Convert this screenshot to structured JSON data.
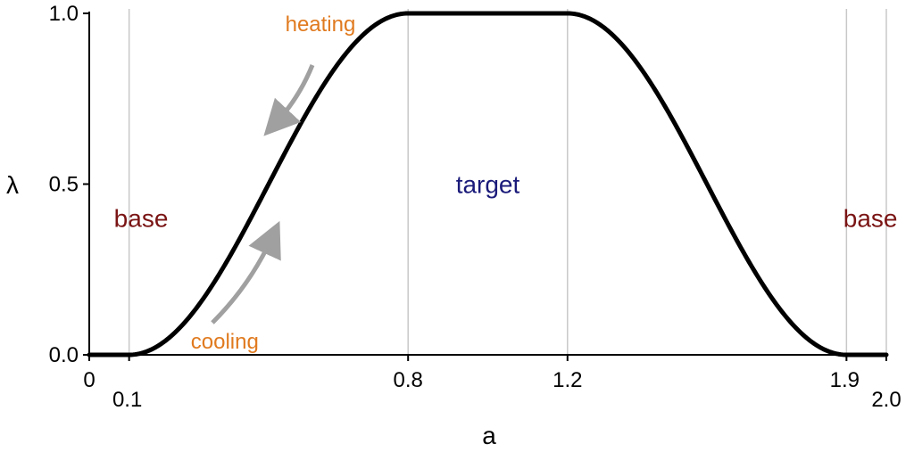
{
  "chart_data": {
    "type": "line",
    "title": "",
    "xlabel": "a",
    "ylabel": "λ",
    "xlim": [
      0,
      2.0
    ],
    "ylim": [
      0,
      1.0
    ],
    "grid": "vertical lines at 0.1, 0.8, 1.2, 1.9, 2.0",
    "x_ticks": [
      {
        "value": 0,
        "label": "0"
      },
      {
        "value": 0.1,
        "label": "0.1"
      },
      {
        "value": 0.8,
        "label": "0.8"
      },
      {
        "value": 1.2,
        "label": "1.2"
      },
      {
        "value": 1.9,
        "label": "1.9"
      },
      {
        "value": 2.0,
        "label": "2.0"
      }
    ],
    "y_ticks": [
      {
        "value": 0.0,
        "label": "0.0"
      },
      {
        "value": 0.5,
        "label": "0.5"
      },
      {
        "value": 1.0,
        "label": "1.0"
      }
    ],
    "series": [
      {
        "color": "#000000",
        "x": [
          0,
          0.1,
          0.2,
          0.3,
          0.4,
          0.5,
          0.6,
          0.7,
          0.8,
          1.2,
          1.3,
          1.4,
          1.5,
          1.6,
          1.7,
          1.8,
          1.9,
          2.0
        ],
        "y": [
          0,
          0,
          0.05,
          0.19,
          0.39,
          0.61,
          0.81,
          0.95,
          1.0,
          1.0,
          0.95,
          0.81,
          0.61,
          0.39,
          0.19,
          0.05,
          0,
          0
        ]
      }
    ],
    "annotations": [
      {
        "text": "base",
        "color": "#7a1414",
        "x": 0.13,
        "y": 0.4
      },
      {
        "text": "base",
        "color": "#7a1414",
        "x": 1.96,
        "y": 0.4
      },
      {
        "text": "target",
        "color": "#1a1a7a",
        "x": 1.0,
        "y": 0.5
      },
      {
        "text": "heating",
        "color": "#e07a1f",
        "x": 0.58,
        "y": 0.97
      },
      {
        "text": "cooling",
        "color": "#e07a1f",
        "x": 0.34,
        "y": 0.04
      }
    ],
    "arrow_color": "#a0a0a0"
  }
}
